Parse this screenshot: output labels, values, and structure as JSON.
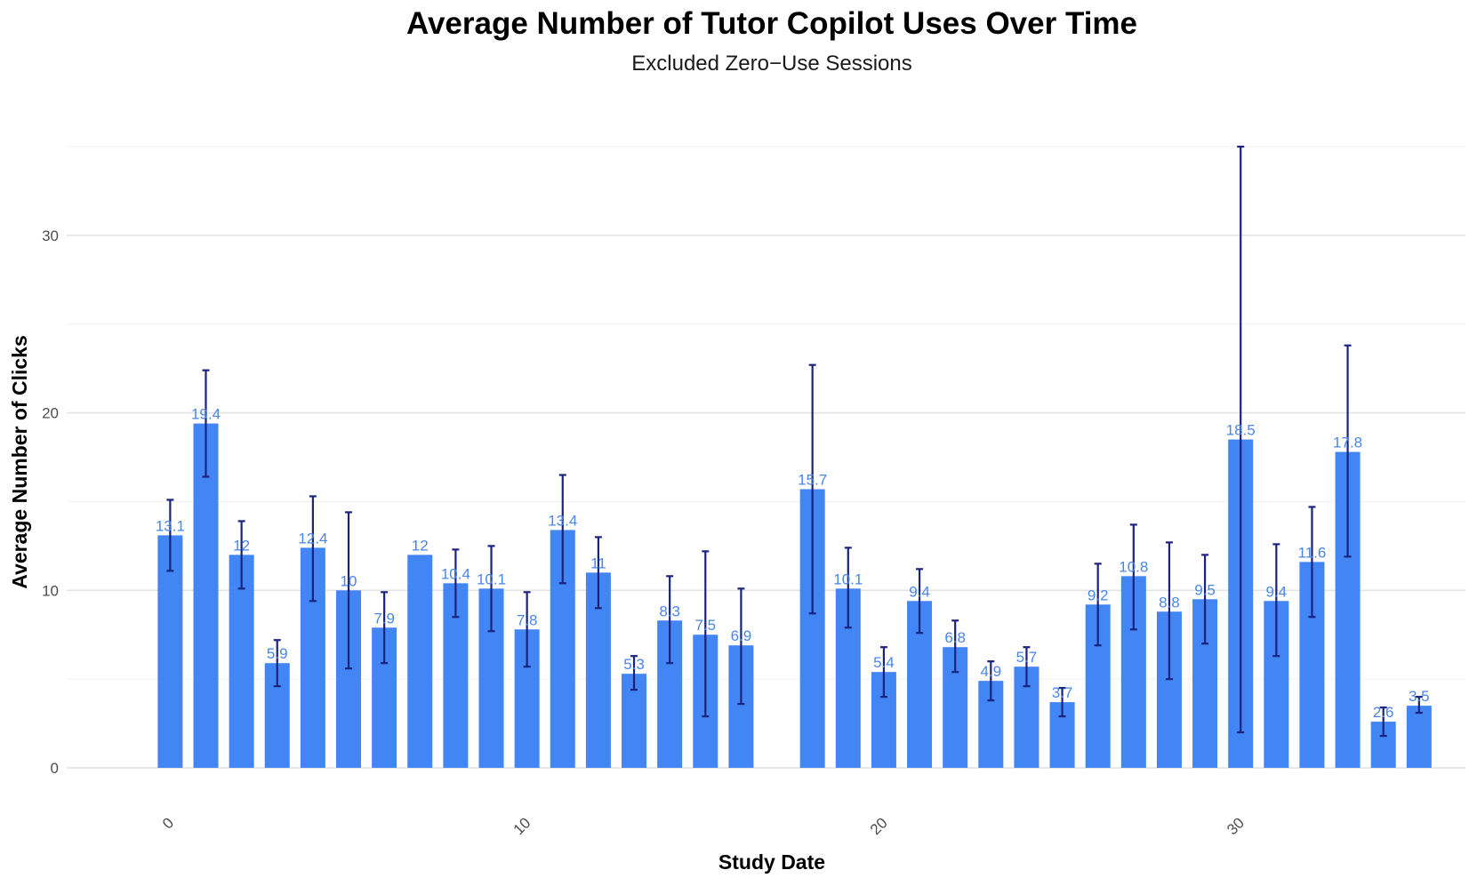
{
  "chart_data": {
    "type": "bar",
    "title": "Average Number of Tutor Copilot Uses Over Time",
    "subtitle": "Excluded Zero−Use Sessions",
    "xlabel": "Study Date",
    "ylabel": "Average Number of Clicks",
    "xlim": [
      -2.9,
      36.3
    ],
    "ylim": [
      -1.4,
      35
    ],
    "x_ticks": [
      0,
      10,
      20,
      30
    ],
    "y_ticks": [
      0,
      10,
      20,
      30
    ],
    "y_minor_ticks": [
      5,
      15,
      25,
      35
    ],
    "grid": true,
    "legend": "none",
    "bar_color": "#4285f4",
    "error_bar_color": "#1a237e",
    "label_color": "#4a86e8",
    "points": [
      {
        "x": 0,
        "value": 13.1,
        "err_low": 11.1,
        "err_high": 15.1,
        "label": "13.1"
      },
      {
        "x": 1,
        "value": 19.4,
        "err_low": 16.4,
        "err_high": 22.4,
        "label": "19.4"
      },
      {
        "x": 2,
        "value": 12,
        "err_low": 10.1,
        "err_high": 13.9,
        "label": "12"
      },
      {
        "x": 3,
        "value": 5.9,
        "err_low": 4.6,
        "err_high": 7.2,
        "label": "5.9"
      },
      {
        "x": 4,
        "value": 12.4,
        "err_low": 9.4,
        "err_high": 15.3,
        "label": "12.4"
      },
      {
        "x": 5,
        "value": 10,
        "err_low": 5.6,
        "err_high": 14.4,
        "label": "10"
      },
      {
        "x": 6,
        "value": 7.9,
        "err_low": 5.9,
        "err_high": 9.9,
        "label": "7.9"
      },
      {
        "x": 7,
        "value": 12,
        "err_low": 12,
        "err_high": 12,
        "label": "12"
      },
      {
        "x": 8,
        "value": 10.4,
        "err_low": 8.5,
        "err_high": 12.3,
        "label": "10.4"
      },
      {
        "x": 9,
        "value": 10.1,
        "err_low": 7.7,
        "err_high": 12.5,
        "label": "10.1"
      },
      {
        "x": 10,
        "value": 7.8,
        "err_low": 5.7,
        "err_high": 9.9,
        "label": "7.8"
      },
      {
        "x": 11,
        "value": 13.4,
        "err_low": 10.4,
        "err_high": 16.5,
        "label": "13.4"
      },
      {
        "x": 12,
        "value": 11,
        "err_low": 9,
        "err_high": 13,
        "label": "11"
      },
      {
        "x": 13,
        "value": 5.3,
        "err_low": 4.4,
        "err_high": 6.3,
        "label": "5.3"
      },
      {
        "x": 14,
        "value": 8.3,
        "err_low": 5.9,
        "err_high": 10.8,
        "label": "8.3"
      },
      {
        "x": 15,
        "value": 7.5,
        "err_low": 2.9,
        "err_high": 12.2,
        "label": "7.5"
      },
      {
        "x": 16,
        "value": 6.9,
        "err_low": 3.6,
        "err_high": 10.1,
        "label": "6.9"
      },
      {
        "x": 18,
        "value": 15.7,
        "err_low": 8.7,
        "err_high": 22.7,
        "label": "15.7"
      },
      {
        "x": 19,
        "value": 10.1,
        "err_low": 7.9,
        "err_high": 12.4,
        "label": "10.1"
      },
      {
        "x": 20,
        "value": 5.4,
        "err_low": 4,
        "err_high": 6.8,
        "label": "5.4"
      },
      {
        "x": 21,
        "value": 9.4,
        "err_low": 7.6,
        "err_high": 11.2,
        "label": "9.4"
      },
      {
        "x": 22,
        "value": 6.8,
        "err_low": 5.4,
        "err_high": 8.3,
        "label": "6.8"
      },
      {
        "x": 23,
        "value": 4.9,
        "err_low": 3.8,
        "err_high": 6,
        "label": "4.9"
      },
      {
        "x": 24,
        "value": 5.7,
        "err_low": 4.6,
        "err_high": 6.8,
        "label": "5.7"
      },
      {
        "x": 25,
        "value": 3.7,
        "err_low": 2.9,
        "err_high": 4.5,
        "label": "3.7"
      },
      {
        "x": 26,
        "value": 9.2,
        "err_low": 6.9,
        "err_high": 11.5,
        "label": "9.2"
      },
      {
        "x": 27,
        "value": 10.8,
        "err_low": 7.8,
        "err_high": 13.7,
        "label": "10.8"
      },
      {
        "x": 28,
        "value": 8.8,
        "err_low": 5,
        "err_high": 12.7,
        "label": "8.8"
      },
      {
        "x": 29,
        "value": 9.5,
        "err_low": 7,
        "err_high": 12,
        "label": "9.5"
      },
      {
        "x": 30,
        "value": 18.5,
        "err_low": 2,
        "err_high": 35,
        "label": "18.5"
      },
      {
        "x": 31,
        "value": 9.4,
        "err_low": 6.3,
        "err_high": 12.6,
        "label": "9.4"
      },
      {
        "x": 32,
        "value": 11.6,
        "err_low": 8.5,
        "err_high": 14.7,
        "label": "11.6"
      },
      {
        "x": 33,
        "value": 17.8,
        "err_low": 11.9,
        "err_high": 23.8,
        "label": "17.8"
      },
      {
        "x": 34,
        "value": 2.6,
        "err_low": 1.8,
        "err_high": 3.4,
        "label": "2.6"
      },
      {
        "x": 35,
        "value": 3.5,
        "err_low": 3.1,
        "err_high": 4,
        "label": "3.5"
      }
    ]
  }
}
